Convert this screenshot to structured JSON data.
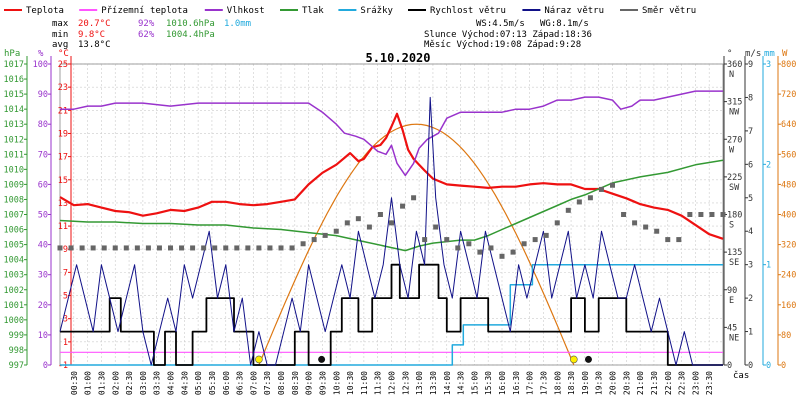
{
  "chart_data": {
    "type": "line",
    "title": "5.10.2020",
    "xlabel": "čas",
    "legend": [
      {
        "label": "Teplota",
        "color": "#ee1111"
      },
      {
        "label": "Přízemní teplota",
        "color": "#ff55ff"
      },
      {
        "label": "Vlhkost",
        "color": "#9933cc"
      },
      {
        "label": "Tlak",
        "color": "#339933"
      },
      {
        "label": "Srážky",
        "color": "#22aadd"
      },
      {
        "label": "Rychlost větru",
        "color": "#000000"
      },
      {
        "label": "Náraz větru",
        "color": "#111188"
      },
      {
        "label": "Směr větru",
        "color": "#666666"
      }
    ],
    "stats": {
      "max": {
        "label": "max",
        "temp": "20.7°C",
        "hum": "92%",
        "pres": "1010.6hPa",
        "rain": "1.0mm"
      },
      "min": {
        "label": "min",
        "temp": "9.8°C",
        "hum": "62%",
        "pres": "1004.4hPa"
      },
      "avg": {
        "label": "avg",
        "temp": "13.8°C"
      }
    },
    "info": {
      "ws": "WS:4.5m/s",
      "wg": "WG:8.1m/s",
      "sun": "Slunce Východ:07:13  Západ:18:36",
      "moon": "Měsíc  Východ:19:08  Západ:9:28"
    },
    "axes": {
      "hpa": {
        "label": "hPa",
        "ticks": [
          "1017",
          "1016",
          "1015",
          "1014",
          "1013",
          "1012",
          "1011",
          "1010",
          "1009",
          "1008",
          "1007",
          "1006",
          "1005",
          "1004",
          "1003",
          "1002",
          "1001",
          "1000",
          "999",
          "998",
          "997"
        ],
        "range": [
          997,
          1017
        ]
      },
      "pct": {
        "label": "%",
        "ticks": [
          "100",
          "90",
          "80",
          "70",
          "60",
          "50",
          "40",
          "30",
          "20",
          "10",
          "0"
        ],
        "range": [
          0,
          100
        ]
      },
      "temp": {
        "label": "°C",
        "ticks": [
          "25",
          "23",
          "21",
          "19",
          "17",
          "15",
          "13",
          "11",
          "9",
          "7",
          "5",
          "3",
          "1",
          "-1"
        ],
        "range": [
          -1,
          25
        ]
      },
      "deg": {
        "label": "°",
        "ticks": [
          "360",
          "315",
          "270",
          "225",
          "180",
          "135",
          "90",
          "45",
          "0"
        ],
        "dirs": [
          "N",
          "NW",
          "W",
          "SW",
          "S",
          "SE",
          "E",
          "NE",
          ""
        ],
        "range": [
          0,
          360
        ]
      },
      "ms": {
        "label": "m/s",
        "ticks": [
          "9",
          "8",
          "7",
          "6",
          "5",
          "4",
          "3",
          "2",
          "1",
          "0"
        ],
        "range": [
          0,
          9
        ]
      },
      "mm": {
        "label": "mm",
        "ticks": [
          "3",
          "2",
          "1",
          "0"
        ],
        "range": [
          0,
          3
        ]
      },
      "wm2": {
        "label": "W",
        "ticks": [
          "800",
          "720",
          "640",
          "560",
          "480",
          "400",
          "320",
          "240",
          "160",
          "80",
          "0"
        ],
        "range": [
          0,
          800
        ]
      }
    },
    "x_ticks": [
      "00:30",
      "01:00",
      "01:30",
      "02:00",
      "02:30",
      "03:00",
      "03:30",
      "04:00",
      "04:30",
      "05:00",
      "05:30",
      "06:00",
      "06:30",
      "07:00",
      "07:30",
      "08:00",
      "08:30",
      "09:00",
      "09:30",
      "10:00",
      "10:30",
      "11:00",
      "11:30",
      "12:00",
      "12:30",
      "13:00",
      "13:30",
      "14:00",
      "14:30",
      "15:00",
      "15:30",
      "16:00",
      "16:30",
      "17:00",
      "17:30",
      "18:00",
      "18:30",
      "19:00",
      "19:30",
      "20:00",
      "20:30",
      "21:00",
      "21:30",
      "22:00",
      "22:30",
      "23:00",
      "23:30"
    ],
    "x_range_hours": [
      0,
      24
    ],
    "series": [
      {
        "name": "Teplota",
        "axis": "temp",
        "color": "#ee1111",
        "width": 2.2,
        "x": [
          0,
          0.5,
          1,
          1.5,
          2,
          2.5,
          3,
          3.5,
          4,
          4.5,
          5,
          5.5,
          6,
          6.5,
          7,
          7.5,
          8,
          8.5,
          9,
          9.5,
          10,
          10.5,
          10.8,
          11,
          11.3,
          11.6,
          11.8,
          12,
          12.2,
          12.4,
          12.6,
          12.8,
          13,
          13.2,
          13.5,
          14,
          14.5,
          15,
          15.5,
          16,
          16.5,
          17,
          17.5,
          18,
          18.5,
          19,
          19.5,
          20,
          20.5,
          21,
          21.5,
          22,
          22.5,
          23,
          23.5,
          24
        ],
        "y": [
          13.5,
          12.8,
          12.9,
          12.6,
          12.3,
          12.2,
          11.9,
          12.1,
          12.4,
          12.3,
          12.6,
          13.1,
          13.1,
          12.9,
          12.8,
          12.9,
          13.1,
          13.3,
          14.6,
          15.6,
          16.3,
          17.3,
          16.6,
          16.8,
          17.8,
          18.0,
          18.6,
          19.6,
          20.7,
          19.3,
          17.6,
          16.8,
          16.3,
          15.8,
          15.1,
          14.6,
          14.5,
          14.4,
          14.3,
          14.4,
          14.4,
          14.6,
          14.7,
          14.6,
          14.6,
          14.2,
          14.2,
          13.8,
          13.4,
          12.9,
          12.6,
          12.4,
          11.9,
          11.1,
          10.3,
          9.9
        ]
      },
      {
        "name": "Přízemní teplota",
        "axis": "temp",
        "color": "#ff55ff",
        "width": 1.2,
        "x": [
          0,
          24
        ],
        "y": [
          0.1,
          0.1
        ]
      },
      {
        "name": "Vlhkost",
        "axis": "pct",
        "color": "#9933cc",
        "width": 1.5,
        "x": [
          0,
          0.5,
          1,
          1.5,
          2,
          3,
          4,
          5,
          6,
          7,
          8,
          9,
          9.5,
          10,
          10.3,
          10.7,
          11,
          11.5,
          11.8,
          12,
          12.2,
          12.5,
          12.8,
          13,
          13.3,
          13.7,
          14,
          14.5,
          15,
          15.5,
          16,
          16.5,
          17,
          17.5,
          18,
          18.5,
          19,
          19.5,
          20,
          20.3,
          20.7,
          21,
          21.5,
          22,
          22.5,
          23,
          23.5,
          24
        ],
        "y": [
          85,
          85,
          86,
          86,
          87,
          87,
          86,
          87,
          87,
          87,
          87,
          87,
          84,
          80,
          77,
          76,
          75,
          71,
          70,
          73,
          67,
          63,
          67,
          72,
          75,
          77,
          82,
          84,
          84,
          84,
          84,
          85,
          85,
          86,
          88,
          88,
          89,
          89,
          88,
          85,
          86,
          88,
          88,
          89,
          90,
          91,
          91,
          91
        ]
      },
      {
        "name": "Tlak",
        "axis": "hpa",
        "color": "#339933",
        "width": 1.5,
        "x": [
          0,
          1,
          2,
          3,
          4,
          5,
          6,
          7,
          8,
          9,
          10,
          11,
          12,
          12.5,
          13,
          13.5,
          14,
          14.5,
          15,
          15.5,
          16,
          16.5,
          17,
          17.5,
          18,
          18.5,
          19,
          19.5,
          20,
          20.5,
          21,
          22,
          23,
          24
        ],
        "y": [
          1006.6,
          1006.5,
          1006.5,
          1006.4,
          1006.4,
          1006.3,
          1006.3,
          1006.1,
          1006.0,
          1005.8,
          1005.6,
          1005.2,
          1004.8,
          1004.6,
          1004.9,
          1005.1,
          1005.2,
          1005.3,
          1005.3,
          1005.6,
          1006.0,
          1006.4,
          1006.8,
          1007.2,
          1007.6,
          1008.0,
          1008.3,
          1008.7,
          1009.1,
          1009.3,
          1009.5,
          1009.8,
          1010.3,
          1010.6
        ]
      },
      {
        "name": "Srážky",
        "axis": "mm",
        "color": "#22aadd",
        "width": 1.5,
        "step": true,
        "x": [
          0,
          14.1,
          14.2,
          14.6,
          15.8,
          16.3,
          17.0,
          17.1,
          24
        ],
        "y": [
          0,
          0,
          0.2,
          0.4,
          0.4,
          0.8,
          0.8,
          1.0,
          1.0
        ]
      },
      {
        "name": "Rychlost větru",
        "axis": "ms",
        "color": "#000000",
        "width": 1.8,
        "step": true,
        "x": [
          0,
          1.4,
          1.8,
          2.2,
          3.4,
          3.8,
          4.2,
          4.8,
          5.3,
          5.8,
          6.3,
          7.0,
          7.5,
          8.0,
          8.5,
          9.0,
          9.8,
          10.2,
          10.8,
          11.3,
          11.7,
          12.0,
          12.3,
          12.7,
          13.0,
          13.3,
          13.7,
          14.0,
          14.5,
          15.0,
          15.5,
          16.0,
          16.5,
          17.0,
          17.5,
          18.0,
          18.5,
          19.0,
          19.5,
          20.0,
          20.5,
          21.0,
          21.5,
          22.0,
          22.5,
          23.0,
          24
        ],
        "y": [
          1,
          1,
          2,
          1,
          0,
          1,
          0,
          1,
          2,
          2,
          1,
          0,
          0,
          0,
          1,
          0,
          1,
          2,
          1,
          2,
          2,
          3,
          2,
          2,
          3,
          3,
          2,
          1,
          2,
          2,
          1,
          1,
          1,
          1,
          1,
          1,
          2,
          1,
          2,
          2,
          1,
          1,
          1,
          0,
          0,
          0,
          0
        ]
      },
      {
        "name": "Náraz větru",
        "axis": "ms",
        "color": "#111188",
        "width": 1.0,
        "x": [
          0,
          0.3,
          0.6,
          0.9,
          1.2,
          1.5,
          1.8,
          2.1,
          2.4,
          2.7,
          3.0,
          3.3,
          3.6,
          3.9,
          4.2,
          4.5,
          4.8,
          5.1,
          5.4,
          5.7,
          6.0,
          6.3,
          6.6,
          6.9,
          7.2,
          7.5,
          7.8,
          8.1,
          8.4,
          8.7,
          9.0,
          9.3,
          9.6,
          9.9,
          10.2,
          10.5,
          10.8,
          11.1,
          11.4,
          11.7,
          12.0,
          12.3,
          12.6,
          12.9,
          13.2,
          13.4,
          13.6,
          13.9,
          14.2,
          14.5,
          14.8,
          15.1,
          15.4,
          15.7,
          16.0,
          16.3,
          16.6,
          16.9,
          17.2,
          17.5,
          17.8,
          18.1,
          18.4,
          18.7,
          19.0,
          19.3,
          19.6,
          19.9,
          20.2,
          20.5,
          20.8,
          21.1,
          21.4,
          21.7,
          22.0,
          22.3,
          22.6,
          22.9,
          23.2,
          23.5,
          24
        ],
        "y": [
          1,
          2,
          3,
          2,
          1,
          3,
          2,
          1,
          2,
          3,
          1,
          0,
          1,
          2,
          1,
          3,
          2,
          3,
          4,
          2,
          3,
          1,
          2,
          0,
          1,
          0,
          0,
          1,
          2,
          1,
          3,
          2,
          1,
          2,
          3,
          2,
          4,
          3,
          2,
          3,
          5,
          3,
          2,
          4,
          3,
          8,
          5,
          3,
          2,
          4,
          3,
          2,
          4,
          3,
          2,
          1,
          3,
          2,
          3,
          4,
          2,
          3,
          4,
          2,
          3,
          2,
          4,
          3,
          2,
          2,
          3,
          2,
          1,
          2,
          1,
          0,
          1,
          0,
          0,
          0,
          0
        ]
      },
      {
        "name": "Směr větru",
        "axis": "deg",
        "color": "#666666",
        "marker": "square",
        "x": [
          0,
          0.4,
          0.8,
          1.2,
          1.6,
          2.0,
          2.4,
          2.8,
          3.2,
          3.6,
          4.0,
          4.4,
          4.8,
          5.2,
          5.6,
          6.0,
          6.4,
          6.8,
          7.2,
          7.6,
          8.0,
          8.4,
          8.8,
          9.2,
          9.6,
          10.0,
          10.4,
          10.8,
          11.2,
          11.6,
          12.0,
          12.4,
          12.8,
          13.2,
          13.6,
          14.0,
          14.4,
          14.8,
          15.2,
          15.6,
          16.0,
          16.4,
          16.8,
          17.2,
          17.6,
          18.0,
          18.4,
          18.8,
          19.2,
          19.6,
          20.0,
          20.4,
          20.8,
          21.2,
          21.6,
          22.0,
          22.4,
          22.8,
          23.2,
          23.6,
          24.0
        ],
        "y": [
          140,
          140,
          140,
          140,
          140,
          140,
          140,
          140,
          140,
          140,
          140,
          140,
          140,
          140,
          140,
          140,
          140,
          140,
          140,
          140,
          140,
          140,
          145,
          150,
          155,
          160,
          170,
          175,
          165,
          180,
          170,
          190,
          200,
          150,
          165,
          150,
          140,
          145,
          135,
          140,
          130,
          135,
          145,
          150,
          155,
          170,
          185,
          195,
          200,
          210,
          215,
          180,
          170,
          165,
          160,
          150,
          150,
          180,
          180,
          180,
          180
        ]
      }
    ],
    "solar": {
      "name": "Radiation",
      "axis": "wm2",
      "color": "#dd7711",
      "start": 7.2,
      "peak": 13.2,
      "end": 18.6,
      "max": 640
    },
    "sun_markers": [
      {
        "x": 7.2,
        "color": "#ffee00"
      },
      {
        "x": 18.6,
        "color": "#ffee00"
      }
    ],
    "moon_markers": [
      {
        "x": 9.47,
        "color": "#111111"
      },
      {
        "x": 19.13,
        "color": "#111111"
      }
    ]
  }
}
